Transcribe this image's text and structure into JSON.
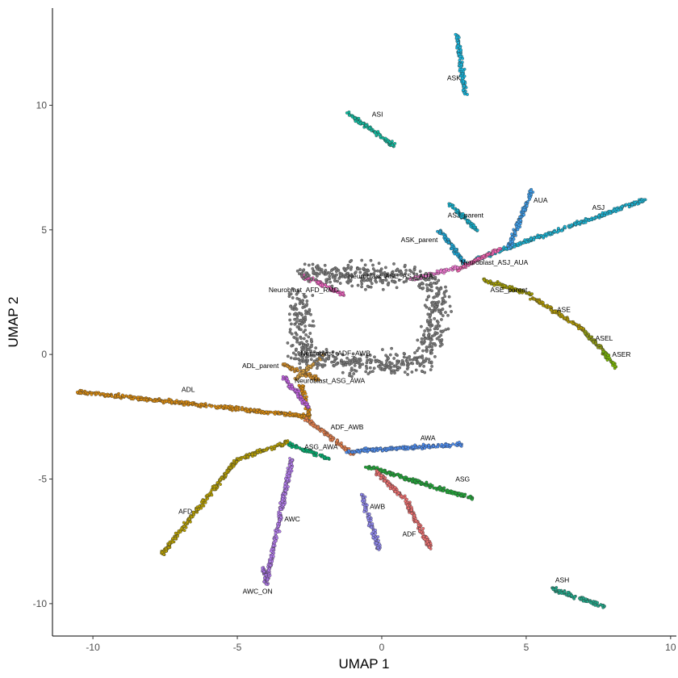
{
  "chart_data": {
    "type": "scatter",
    "title": "",
    "xlabel": "UMAP 1",
    "ylabel": "UMAP 2",
    "xlim": [
      -11.4,
      10.2
    ],
    "ylim": [
      -11.3,
      13.9
    ],
    "xticks": [
      -10,
      -5,
      0,
      5,
      10
    ],
    "yticks": [
      -10,
      -5,
      0,
      5,
      10
    ],
    "grid": false,
    "legend": "none",
    "clusters": [
      {
        "name": "ADL",
        "color": "#D98A0E",
        "segments": [
          [
            [
              -10.5,
              -1.5
            ],
            [
              -2.5,
              -2.5
            ],
            [
              -2.8,
              -1.2
            ]
          ]
        ],
        "label": [
          -6.7,
          -1.5
        ]
      },
      {
        "name": "ADL_parent",
        "color": "#D08A25",
        "segments": [
          [
            [
              -3.4,
              -0.4
            ],
            [
              -2.2,
              -1.0
            ]
          ]
        ],
        "label": [
          -4.2,
          -0.55
        ]
      },
      {
        "name": "AFD",
        "color": "#B8A000",
        "segments": [
          [
            [
              -7.6,
              -8.0
            ],
            [
              -5.0,
              -4.2
            ],
            [
              -3.2,
              -3.5
            ]
          ]
        ],
        "label": [
          -6.8,
          -6.4
        ]
      },
      {
        "name": "Neuroblast_AFD_RMD",
        "color": "#F062C0",
        "segments": [
          [
            [
              -2.8,
              3.2
            ],
            [
              -1.3,
              2.4
            ]
          ]
        ],
        "label": [
          -2.7,
          2.5
        ]
      },
      {
        "name": "ASJ",
        "color": "#19B5D6",
        "segments": [
          [
            [
              3.2,
              3.8
            ],
            [
              9.1,
              6.2
            ]
          ]
        ],
        "label": [
          7.5,
          5.8
        ]
      },
      {
        "name": "ASJ_parent",
        "color": "#11B2CF",
        "segments": [
          [
            [
              2.4,
              6.0
            ],
            [
              3.3,
              5.0
            ]
          ]
        ],
        "label": [
          2.9,
          5.5
        ]
      },
      {
        "name": "ASK",
        "color": "#16B8E0",
        "segments": [
          [
            [
              2.6,
              12.8
            ],
            [
              2.9,
              10.4
            ]
          ]
        ],
        "label": [
          2.5,
          11.0
        ]
      },
      {
        "name": "ASK_parent",
        "color": "#1AA7D8",
        "segments": [
          [
            [
              2.0,
              5.0
            ],
            [
              2.9,
              3.6
            ]
          ]
        ],
        "label": [
          1.3,
          4.5
        ]
      },
      {
        "name": "ASI",
        "color": "#0FBFA3",
        "segments": [
          [
            [
              -1.2,
              9.7
            ],
            [
              0.4,
              8.4
            ]
          ]
        ],
        "label": [
          -0.15,
          9.55
        ]
      },
      {
        "name": "AUA",
        "color": "#3DA0F0",
        "segments": [
          [
            [
              5.2,
              6.6
            ],
            [
              4.4,
              4.3
            ]
          ]
        ],
        "label": [
          5.5,
          6.1
        ]
      },
      {
        "name": "Neuroblast_ASJ_AUA",
        "color": "#F564B4",
        "segments": [
          [
            [
              2.6,
              3.4
            ],
            [
              4.2,
              4.3
            ]
          ]
        ],
        "label": [
          3.9,
          3.6
        ]
      },
      {
        "name": "Neuroblast_ASE_ASJ_AUA",
        "color": "#F37BD5",
        "segments": [
          [
            [
              1.0,
              3.0
            ],
            [
              2.6,
              3.5
            ]
          ]
        ],
        "label": [
          0.3,
          3.05
        ]
      },
      {
        "name": "ASE_parent",
        "color": "#A6A000",
        "segments": [
          [
            [
              3.5,
              3.0
            ],
            [
              5.2,
              2.4
            ]
          ]
        ],
        "label": [
          4.4,
          2.5
        ]
      },
      {
        "name": "ASE",
        "color": "#B39A00",
        "segments": [
          [
            [
              5.2,
              2.3
            ],
            [
              7.0,
              1.0
            ]
          ]
        ],
        "label": [
          6.3,
          1.7
        ]
      },
      {
        "name": "ASEL",
        "color": "#8F9A10",
        "segments": [
          [
            [
              7.0,
              0.9
            ],
            [
              7.8,
              0.0
            ]
          ]
        ],
        "label": [
          7.7,
          0.55
        ]
      },
      {
        "name": "ASER",
        "color": "#7AB800",
        "segments": [
          [
            [
              7.7,
              0.1
            ],
            [
              8.1,
              -0.5
            ]
          ]
        ],
        "label": [
          8.3,
          -0.1
        ]
      },
      {
        "name": "Neuroblast_ADF_AWB",
        "color": "#D9A040",
        "segments": [
          [
            [
              -3.0,
              -1.0
            ],
            [
              -2.0,
              0.0
            ]
          ]
        ],
        "label": [
          -1.6,
          -0.05
        ]
      },
      {
        "name": "Neuroblast_ASG_AWA",
        "color": "#C060E0",
        "segments": [
          [
            [
              -3.4,
              -0.9
            ],
            [
              -2.5,
              -2.2
            ]
          ]
        ],
        "label": [
          -1.8,
          -1.15
        ]
      },
      {
        "name": "ADF_AWB",
        "color": "#E8804C",
        "segments": [
          [
            [
              -2.6,
              -2.6
            ],
            [
              -1.0,
              -4.0
            ]
          ]
        ],
        "label": [
          -1.2,
          -3.0
        ]
      },
      {
        "name": "ASG_AWA",
        "color": "#00B070",
        "segments": [
          [
            [
              -3.2,
              -3.6
            ],
            [
              -1.8,
              -4.2
            ]
          ]
        ],
        "label": [
          -2.1,
          -3.8
        ]
      },
      {
        "name": "AWA",
        "color": "#4C8CF0",
        "segments": [
          [
            [
              -1.2,
              -3.9
            ],
            [
              2.8,
              -3.6
            ]
          ]
        ],
        "label": [
          1.6,
          -3.45
        ]
      },
      {
        "name": "ASG",
        "color": "#20A838",
        "segments": [
          [
            [
              -0.5,
              -4.5
            ],
            [
              3.2,
              -5.8
            ]
          ]
        ],
        "label": [
          2.8,
          -5.1
        ]
      },
      {
        "name": "AWB",
        "color": "#9088F0",
        "segments": [
          [
            [
              -0.7,
              -5.6
            ],
            [
              -0.1,
              -7.8
            ]
          ]
        ],
        "label": [
          -0.15,
          -6.2
        ]
      },
      {
        "name": "ADF",
        "color": "#F07070",
        "segments": [
          [
            [
              -0.2,
              -4.7
            ],
            [
              0.8,
              -5.8
            ],
            [
              1.7,
              -7.8
            ]
          ]
        ],
        "label": [
          0.95,
          -7.3
        ]
      },
      {
        "name": "AWC",
        "color": "#B47CEE",
        "segments": [
          [
            [
              -3.1,
              -4.1
            ],
            [
              -4.0,
              -9.2
            ]
          ]
        ],
        "label": [
          -3.1,
          -6.7
        ]
      },
      {
        "name": "AWC_ON",
        "color": "#A973E8",
        "segments": [
          [
            [
              -4.1,
              -8.6
            ],
            [
              -4.0,
              -9.2
            ]
          ]
        ],
        "label": [
          -4.3,
          -9.6
        ]
      },
      {
        "name": "ASH",
        "color": "#1FA98A",
        "segments": [
          [
            [
              5.9,
              -9.4
            ],
            [
              7.7,
              -10.1
            ]
          ]
        ],
        "label": [
          6.25,
          -9.15
        ]
      },
      {
        "name": "",
        "color": "#7A7A7A",
        "segments": [
          [
            [
              -2.8,
              3.3
            ],
            [
              1.5,
              3.0
            ],
            [
              2.0,
              2.5
            ],
            [
              1.6,
              -0.3
            ],
            [
              -1.0,
              -0.4
            ],
            [
              -2.8,
              0.0
            ],
            [
              -2.9,
              2.5
            ]
          ]
        ],
        "label": null
      }
    ]
  }
}
